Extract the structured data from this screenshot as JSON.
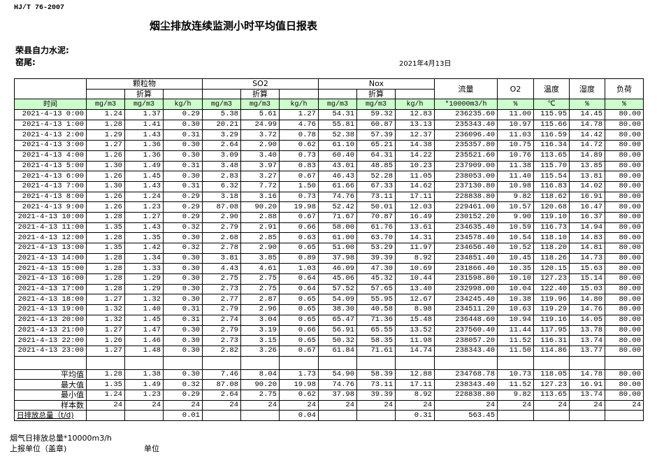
{
  "header": {
    "standard": "HJ/T  76-2007",
    "title": "烟尘排放连续监测小时平均值日报表",
    "company": "荣县自力水泥:",
    "kiln": "窑尾:",
    "date": "2021年4月13日"
  },
  "table": {
    "groups": {
      "particulate": "颗粒物",
      "so2": "SO2",
      "nox": "Nox",
      "flow": "流量",
      "o2": "O2",
      "temp": "温度",
      "humidity": "湿度",
      "load": "负荷"
    },
    "converted_label": "折算",
    "units": [
      "时间",
      "mg/m3",
      "mg/m3",
      "kg/h",
      "mg/m3",
      "mg/m3",
      "kg/h",
      "mg/m3",
      "mg/m3",
      "kg/h",
      "*10000m3/h",
      "%",
      "℃",
      "%",
      "%"
    ],
    "rows": [
      [
        "2021-4-13 0:00",
        "1.24",
        "1.37",
        "0.29",
        "5.38",
        "5.61",
        "1.27",
        "54.31",
        "59.32",
        "12.83",
        "236235.60",
        "11.00",
        "115.95",
        "14.45",
        "80.00"
      ],
      [
        "2021-4-13 1:00",
        "1.28",
        "1.41",
        "0.30",
        "20.21",
        "24.99",
        "4.76",
        "55.81",
        "60.87",
        "13.13",
        "235343.40",
        "10.97",
        "115.66",
        "14.78",
        "80.00"
      ],
      [
        "2021-4-13 2:00",
        "1.29",
        "1.43",
        "0.31",
        "3.29",
        "3.72",
        "0.78",
        "52.38",
        "57.39",
        "12.37",
        "236096.40",
        "11.03",
        "116.59",
        "14.42",
        "80.00"
      ],
      [
        "2021-4-13 3:00",
        "1.27",
        "1.36",
        "0.30",
        "2.64",
        "2.90",
        "0.62",
        "61.10",
        "65.21",
        "14.38",
        "235357.80",
        "10.75",
        "116.34",
        "14.72",
        "80.00"
      ],
      [
        "2021-4-13 4:00",
        "1.26",
        "1.36",
        "0.30",
        "3.09",
        "3.40",
        "0.73",
        "60.40",
        "64.31",
        "14.22",
        "235521.60",
        "10.76",
        "113.65",
        "14.89",
        "80.00"
      ],
      [
        "2021-4-13 5:00",
        "1.30",
        "1.49",
        "0.31",
        "3.48",
        "3.97",
        "0.83",
        "43.01",
        "48.85",
        "10.23",
        "237909.00",
        "11.38",
        "115.70",
        "13.85",
        "80.00"
      ],
      [
        "2021-4-13 6:00",
        "1.26",
        "1.45",
        "0.30",
        "2.83",
        "3.27",
        "0.67",
        "46.43",
        "52.28",
        "11.05",
        "238053.00",
        "11.40",
        "115.54",
        "13.81",
        "80.00"
      ],
      [
        "2021-4-13 7:00",
        "1.30",
        "1.43",
        "0.31",
        "6.32",
        "7.72",
        "1.50",
        "61.66",
        "67.33",
        "14.62",
        "237130.80",
        "10.98",
        "116.83",
        "14.02",
        "80.00"
      ],
      [
        "2021-4-13 8:00",
        "1.26",
        "1.24",
        "0.29",
        "3.18",
        "3.16",
        "0.73",
        "74.76",
        "73.11",
        "17.11",
        "228838.80",
        "9.82",
        "118.62",
        "16.91",
        "80.00"
      ],
      [
        "2021-4-13 9:00",
        "1.26",
        "1.23",
        "0.29",
        "87.08",
        "90.20",
        "19.98",
        "52.42",
        "50.01",
        "12.03",
        "229461.00",
        "10.57",
        "120.68",
        "16.47",
        "80.00"
      ],
      [
        "2021-4-13 10:00",
        "1.28",
        "1.27",
        "0.29",
        "2.90",
        "2.88",
        "0.67",
        "71.67",
        "70.87",
        "16.49",
        "230152.20",
        "9.90",
        "119.10",
        "16.37",
        "80.00"
      ],
      [
        "2021-4-13 11:00",
        "1.35",
        "1.43",
        "0.32",
        "2.79",
        "2.91",
        "0.66",
        "58.00",
        "61.76",
        "13.61",
        "234635.40",
        "10.59",
        "116.73",
        "14.94",
        "80.00"
      ],
      [
        "2021-4-13 12:00",
        "1.28",
        "1.35",
        "0.30",
        "2.68",
        "2.85",
        "0.63",
        "61.00",
        "63.70",
        "14.31",
        "234578.40",
        "10.54",
        "118.10",
        "14.83",
        "80.00"
      ],
      [
        "2021-4-13 13:00",
        "1.35",
        "1.42",
        "0.32",
        "2.78",
        "2.90",
        "0.65",
        "51.00",
        "53.29",
        "11.97",
        "234656.40",
        "10.52",
        "118.20",
        "14.81",
        "80.00"
      ],
      [
        "2021-4-13 14:00",
        "1.28",
        "1.34",
        "0.30",
        "3.81",
        "3.85",
        "0.89",
        "37.98",
        "39.39",
        "8.92",
        "234851.40",
        "10.45",
        "118.26",
        "14.73",
        "80.00"
      ],
      [
        "2021-4-13 15:00",
        "1.28",
        "1.33",
        "0.30",
        "4.43",
        "4.61",
        "1.03",
        "46.09",
        "47.30",
        "10.69",
        "231866.40",
        "10.35",
        "120.15",
        "15.63",
        "80.00"
      ],
      [
        "2021-4-13 16:00",
        "1.28",
        "1.29",
        "0.30",
        "2.75",
        "2.75",
        "0.64",
        "45.06",
        "45.32",
        "10.44",
        "231598.80",
        "10.10",
        "127.23",
        "15.14",
        "80.00"
      ],
      [
        "2021-4-13 17:00",
        "1.28",
        "1.29",
        "0.30",
        "2.73",
        "2.75",
        "0.64",
        "57.52",
        "57.65",
        "13.40",
        "232998.00",
        "10.04",
        "122.40",
        "15.03",
        "80.00"
      ],
      [
        "2021-4-13 18:00",
        "1.27",
        "1.32",
        "0.30",
        "2.77",
        "2.87",
        "0.65",
        "54.09",
        "55.95",
        "12.67",
        "234245.40",
        "10.38",
        "119.96",
        "14.80",
        "80.00"
      ],
      [
        "2021-4-13 19:00",
        "1.32",
        "1.40",
        "0.31",
        "2.79",
        "2.96",
        "0.65",
        "38.30",
        "40.58",
        "8.98",
        "234511.20",
        "10.63",
        "119.29",
        "14.76",
        "80.00"
      ],
      [
        "2021-4-13 20:00",
        "1.32",
        "1.45",
        "0.31",
        "2.74",
        "3.04",
        "0.65",
        "65.47",
        "71.36",
        "15.48",
        "236448.60",
        "10.94",
        "119.16",
        "14.05",
        "80.00"
      ],
      [
        "2021-4-13 21:00",
        "1.27",
        "1.47",
        "0.30",
        "2.79",
        "3.19",
        "0.66",
        "56.91",
        "65.55",
        "13.52",
        "237560.40",
        "11.44",
        "117.95",
        "13.78",
        "80.00"
      ],
      [
        "2021-4-13 22:00",
        "1.26",
        "1.46",
        "0.30",
        "2.73",
        "3.15",
        "0.65",
        "50.32",
        "58.35",
        "11.98",
        "238057.20",
        "11.52",
        "116.31",
        "13.74",
        "80.00"
      ],
      [
        "2021-4-13 23:00",
        "1.27",
        "1.48",
        "0.30",
        "2.82",
        "3.26",
        "0.67",
        "61.84",
        "71.61",
        "14.74",
        "238343.40",
        "11.50",
        "114.86",
        "13.77",
        "80.00"
      ]
    ],
    "stats": [
      [
        "平均值",
        "1.28",
        "1.38",
        "0.30",
        "7.46",
        "8.04",
        "1.73",
        "54.90",
        "58.39",
        "12.88",
        "234768.78",
        "10.73",
        "118.05",
        "14.78",
        "80.00"
      ],
      [
        "最大值",
        "1.35",
        "1.49",
        "0.32",
        "87.08",
        "90.20",
        "19.98",
        "74.76",
        "73.11",
        "17.11",
        "238343.40",
        "11.52",
        "127.23",
        "16.91",
        "80.00"
      ],
      [
        "最小值",
        "1.24",
        "1.23",
        "0.29",
        "2.64",
        "2.75",
        "0.62",
        "37.98",
        "39.39",
        "8.92",
        "228838.80",
        "9.82",
        "113.65",
        "13.74",
        "80.00"
      ],
      [
        "样本数",
        "24",
        "24",
        "24",
        "24",
        "24",
        "24",
        "24",
        "24",
        "24",
        "24",
        "24",
        "24",
        "24",
        "24"
      ]
    ],
    "total": [
      "日排放总量（t/d)",
      "",
      "",
      "0.01",
      "",
      "",
      "0.04",
      "",
      "",
      "0.31",
      "563.45",
      "",
      "",
      "",
      ""
    ]
  },
  "footer": {
    "flue_gas_total": "烟气日排放总量*10000m3/h",
    "reporting_unit": "上报单位（盖章)",
    "unit_label": "单位"
  },
  "colors": {
    "units_row_bg": "#ccffcc",
    "border": "#000000"
  }
}
